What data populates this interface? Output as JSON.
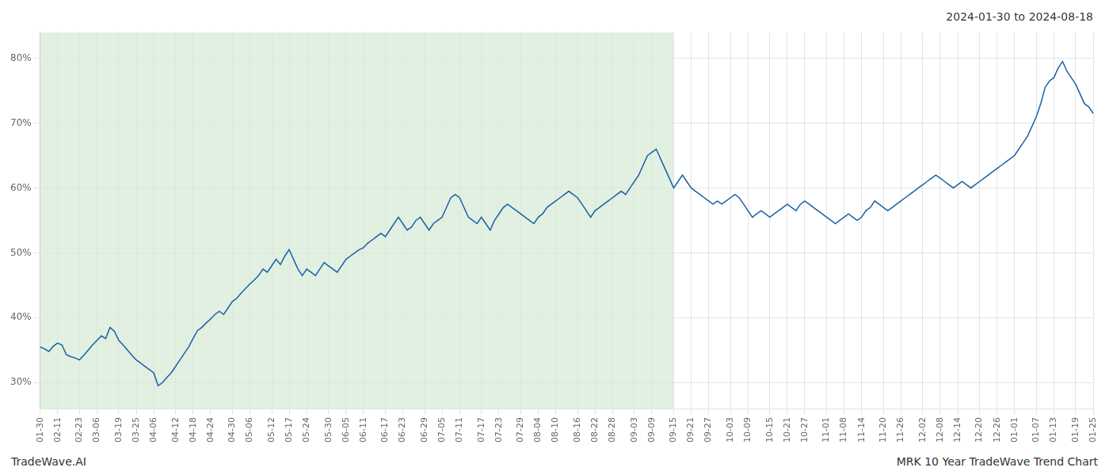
{
  "chart_data": {
    "type": "line",
    "title": "2024-01-30 to 2024-08-18",
    "annotations": [
      "TradeWave.AI",
      "MRK 10 Year TradeWave Trend Chart"
    ],
    "categories": [
      "01-30",
      null,
      null,
      null,
      "02-11",
      null,
      null,
      null,
      null,
      "02-23",
      null,
      null,
      null,
      "03-06",
      null,
      null,
      null,
      null,
      "03-19",
      null,
      null,
      null,
      "03-25",
      null,
      null,
      null,
      "04-06",
      null,
      null,
      null,
      null,
      "04-12",
      null,
      null,
      null,
      "04-18",
      null,
      null,
      null,
      "04-24",
      null,
      null,
      null,
      null,
      "04-30",
      null,
      null,
      null,
      "05-06",
      null,
      null,
      null,
      null,
      "05-12",
      null,
      null,
      null,
      "05-17",
      null,
      null,
      null,
      "05-24",
      null,
      null,
      null,
      null,
      "05-30",
      null,
      null,
      null,
      "06-05",
      null,
      null,
      null,
      "06-11",
      null,
      null,
      null,
      null,
      "06-17",
      null,
      null,
      null,
      "06-23",
      null,
      null,
      null,
      null,
      "06-29",
      null,
      null,
      null,
      "07-05",
      null,
      null,
      null,
      "07-11",
      null,
      null,
      null,
      null,
      "07-17",
      null,
      null,
      null,
      "07-23",
      null,
      null,
      null,
      null,
      "07-29",
      null,
      null,
      null,
      "08-04",
      null,
      null,
      null,
      "08-10",
      null,
      null,
      null,
      null,
      "08-16",
      null,
      null,
      null,
      "08-22",
      null,
      null,
      null,
      "08-28",
      null,
      null,
      null,
      null,
      "09-03",
      null,
      null,
      null,
      "09-09",
      null,
      null,
      null,
      null,
      "09-15",
      null,
      null,
      null,
      "09-21",
      null,
      null,
      null,
      "09-27",
      null,
      null,
      null,
      null,
      "10-03",
      null,
      null,
      null,
      "10-09",
      null,
      null,
      null,
      null,
      "10-15",
      null,
      null,
      null,
      "10-21",
      null,
      null,
      null,
      "10-27",
      null,
      null,
      null,
      null,
      "11-01",
      null,
      null,
      null,
      "11-08",
      null,
      null,
      null,
      "11-14",
      null,
      null,
      null,
      null,
      "11-20",
      null,
      null,
      null,
      "11-26",
      null,
      null,
      null,
      null,
      "12-02",
      null,
      null,
      null,
      "12-08",
      null,
      null,
      null,
      "12-14",
      null,
      null,
      null,
      null,
      "12-20",
      null,
      null,
      null,
      "12-26",
      null,
      null,
      null,
      "01-01",
      null,
      null,
      null,
      null,
      "01-07",
      null,
      null,
      null,
      "01-13",
      null,
      null,
      null,
      null,
      "01-19",
      null,
      null,
      null,
      "01-25"
    ],
    "series": [
      {
        "name": "MRK",
        "color": "#1a5fa8",
        "values": [
          35.5,
          35.2,
          34.8,
          35.6,
          36.1,
          35.8,
          34.3,
          34.0,
          33.8,
          33.5,
          34.2,
          35.0,
          35.8,
          36.5,
          37.2,
          36.8,
          38.5,
          37.9,
          36.5,
          35.8,
          35.0,
          34.2,
          33.5,
          33.0,
          32.5,
          32.0,
          31.5,
          29.5,
          30.0,
          30.8,
          31.5,
          32.5,
          33.5,
          34.5,
          35.5,
          36.8,
          38.0,
          38.5,
          39.2,
          39.8,
          40.5,
          41.0,
          40.5,
          41.5,
          42.5,
          43.0,
          43.8,
          44.5,
          45.2,
          45.8,
          46.5,
          47.5,
          47.0,
          48.0,
          49.0,
          48.2,
          49.5,
          50.5,
          49.0,
          47.5,
          46.5,
          47.5,
          47.0,
          46.5,
          47.5,
          48.5,
          48.0,
          47.5,
          47.0,
          48.0,
          49.0,
          49.5,
          50.0,
          50.5,
          50.8,
          51.5,
          52.0,
          52.5,
          53.0,
          52.5,
          53.5,
          54.5,
          55.5,
          54.5,
          53.5,
          54.0,
          55.0,
          55.5,
          54.5,
          53.5,
          54.5,
          55.0,
          55.5,
          57.0,
          58.5,
          59.0,
          58.5,
          57.0,
          55.5,
          55.0,
          54.5,
          55.5,
          54.5,
          53.5,
          55.0,
          56.0,
          57.0,
          57.5,
          57.0,
          56.5,
          56.0,
          55.5,
          55.0,
          54.5,
          55.5,
          56.0,
          57.0,
          57.5,
          58.0,
          58.5,
          59.0,
          59.5,
          59.0,
          58.5,
          57.5,
          56.5,
          55.5,
          56.5,
          57.0,
          57.5,
          58.0,
          58.5,
          59.0,
          59.5,
          59.0,
          60.0,
          61.0,
          62.0,
          63.5,
          65.0,
          65.5,
          66.0,
          64.5,
          63.0,
          61.5,
          60.0,
          61.0,
          62.0,
          61.0,
          60.0,
          59.5,
          59.0,
          58.5,
          58.0,
          57.5,
          58.0,
          57.5,
          58.0,
          58.5,
          59.0,
          58.5,
          57.5,
          56.5,
          55.5,
          56.0,
          56.5,
          56.0,
          55.5,
          56.0,
          56.5,
          57.0,
          57.5,
          57.0,
          56.5,
          57.5,
          58.0,
          57.5,
          57.0,
          56.5,
          56.0,
          55.5,
          55.0,
          54.5,
          55.0,
          55.5,
          56.0,
          55.5,
          55.0,
          55.5,
          56.5,
          57.0,
          58.0,
          57.5,
          57.0,
          56.5,
          57.0,
          57.5,
          58.0,
          58.5,
          59.0,
          59.5,
          60.0,
          60.5,
          61.0,
          61.5,
          62.0,
          61.5,
          61.0,
          60.5,
          60.0,
          60.5,
          61.0,
          60.5,
          60.0,
          60.5,
          61.0,
          61.5,
          62.0,
          62.5,
          63.0,
          63.5,
          64.0,
          64.5,
          65.0,
          66.0,
          67.0,
          68.0,
          69.5,
          71.0,
          73.0,
          75.5,
          76.5,
          77.0,
          78.5,
          79.5,
          78.0,
          77.0,
          76.0,
          74.5,
          73.0,
          72.5,
          71.5
        ]
      }
    ],
    "shading": {
      "from_index": 0,
      "to_index": 145,
      "color": "#d4ead4"
    },
    "ylim": [
      26,
      84
    ],
    "yticks": [
      {
        "value": 30,
        "label": "30%"
      },
      {
        "value": 40,
        "label": "40%"
      },
      {
        "value": 50,
        "label": "50%"
      },
      {
        "value": 60,
        "label": "60%"
      },
      {
        "value": 70,
        "label": "70%"
      },
      {
        "value": 80,
        "label": "80%"
      }
    ],
    "grid": true
  }
}
